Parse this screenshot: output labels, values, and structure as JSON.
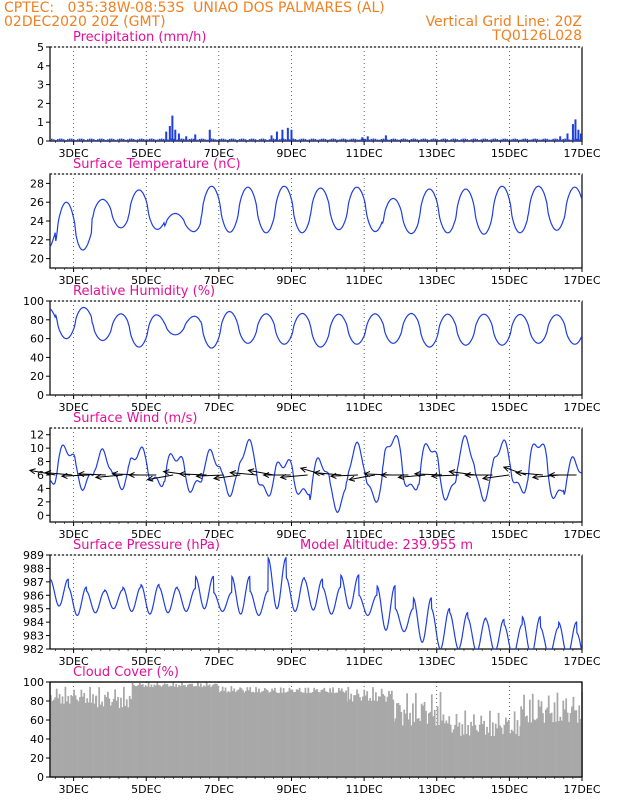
{
  "header": {
    "line1_left": "CPTEC:   035:38W-08:53S  UNIAO DOS PALMARES (AL)",
    "line2_left": "02DEC2020 20Z (GMT)",
    "line2_right": "Vertical Grid Line: 20Z",
    "line3_right": "TQ0126L028"
  },
  "colors": {
    "header": "#f08020",
    "title": "#e0109a",
    "series": "#1f3ee0",
    "cloud": "#a8a8a8",
    "wind_arrow": "#000000"
  },
  "x_axis": {
    "ticks": [
      "3DEC",
      "5DEC",
      "7DEC",
      "9DEC",
      "11DEC",
      "13DEC",
      "15DEC",
      "17DEC"
    ],
    "tick_days": [
      3,
      5,
      7,
      9,
      11,
      13,
      15,
      17
    ],
    "start_day": 2.35,
    "end_day": 17.0
  },
  "chart_data": [
    {
      "type": "bar",
      "title": "Precipitation (mm/h)",
      "ylim": [
        0,
        5
      ],
      "yticks": [
        0,
        1,
        2,
        3,
        4,
        5
      ],
      "events": [
        {
          "day": 5.55,
          "value": 0.5
        },
        {
          "day": 5.65,
          "value": 0.8
        },
        {
          "day": 5.72,
          "value": 1.35
        },
        {
          "day": 5.8,
          "value": 0.6
        },
        {
          "day": 5.9,
          "value": 0.4
        },
        {
          "day": 6.1,
          "value": 0.25
        },
        {
          "day": 6.35,
          "value": 0.35
        },
        {
          "day": 6.75,
          "value": 0.6
        },
        {
          "day": 8.45,
          "value": 0.3
        },
        {
          "day": 8.6,
          "value": 0.5
        },
        {
          "day": 8.75,
          "value": 0.6
        },
        {
          "day": 8.9,
          "value": 0.7
        },
        {
          "day": 9.0,
          "value": 0.6
        },
        {
          "day": 10.95,
          "value": 0.2
        },
        {
          "day": 11.1,
          "value": 0.25
        },
        {
          "day": 11.6,
          "value": 0.3
        },
        {
          "day": 16.4,
          "value": 0.25
        },
        {
          "day": 16.6,
          "value": 0.4
        },
        {
          "day": 16.75,
          "value": 0.9
        },
        {
          "day": 16.82,
          "value": 1.15
        },
        {
          "day": 16.9,
          "value": 0.6
        },
        {
          "day": 16.97,
          "value": 0.4
        }
      ]
    },
    {
      "type": "line",
      "title": "Surface Temperature (nC)",
      "ylim": [
        19,
        29
      ],
      "yticks": [
        20,
        22,
        24,
        26,
        28
      ],
      "daily_max": [
        26.0,
        26.3,
        27.3,
        24.8,
        27.7,
        27.6,
        27.7,
        27.5,
        27.6,
        26.4,
        27.4,
        27.4,
        27.7,
        27.7,
        27.6
      ],
      "daily_min": [
        20.0,
        23.3,
        23.2,
        22.9,
        22.8,
        22.8,
        22.6,
        23.1,
        23.0,
        22.6,
        22.8,
        22.6,
        22.6,
        23.1,
        22.8
      ]
    },
    {
      "type": "line",
      "title": "Relative Humidity (%)",
      "ylim": [
        0,
        100
      ],
      "yticks": [
        0,
        20,
        40,
        60,
        80,
        100
      ],
      "daily_max": [
        96,
        86,
        87,
        81,
        90,
        86,
        87,
        86,
        86,
        87,
        86,
        86,
        86,
        85,
        86
      ],
      "daily_min": [
        60,
        58,
        51,
        64,
        50,
        55,
        54,
        51,
        54,
        55,
        51,
        53,
        53,
        55,
        54
      ]
    },
    {
      "type": "line",
      "title": "Surface Wind (m/s)",
      "ylim": [
        -1,
        13
      ],
      "yticks": [
        0,
        2,
        4,
        6,
        8,
        10,
        12
      ],
      "daily_max": [
        10.0,
        9.0,
        9.5,
        9.0,
        9.0,
        10.5,
        8.0,
        8.0,
        10.0,
        11.5,
        10.5,
        11.0,
        10.5,
        11.0,
        8.0
      ],
      "daily_min": [
        4.5,
        4.5,
        5.0,
        4.0,
        4.0,
        3.0,
        4.0,
        1.0,
        2.0,
        4.0,
        3.0,
        2.5,
        4.0,
        3.0,
        2.0
      ],
      "arrow_length_days": 0.75,
      "arrow_angles_deg": [
        160,
        170,
        185,
        175,
        190,
        175,
        180,
        200,
        165,
        175,
        185,
        195,
        170,
        160,
        180,
        190,
        150,
        170,
        185,
        200,
        175,
        180,
        190,
        175,
        185,
        165,
        180,
        195,
        145,
        170,
        190,
        180
      ]
    },
    {
      "type": "line",
      "title": "Surface Pressure (hPa)",
      "subtitle": "Model Altitude: 239.955  m",
      "ylim": [
        982,
        989
      ],
      "yticks": [
        982,
        983,
        984,
        985,
        986,
        987,
        988,
        989
      ],
      "semidiurnal_peaks": [
        987.2,
        986.6,
        986.3,
        986.4,
        986.6,
        986.8,
        986.6,
        986.5,
        987.4,
        986.2,
        987.4,
        986.3,
        988.8,
        987.3,
        987.2,
        986.6,
        987.5,
        986.0,
        986.7,
        985.0,
        985.8,
        985.0,
        984.7,
        984.3,
        984.2,
        983.8,
        984.4,
        983.6,
        984.0,
        983.2
      ],
      "semidiurnal_troughs": [
        985.2,
        984.5,
        984.7,
        985.0,
        984.8,
        984.6,
        984.7,
        984.8,
        985.0,
        984.8,
        984.6,
        984.5,
        985.0,
        984.8,
        984.9,
        984.6,
        985.0,
        984.5,
        983.4,
        983.3,
        982.5,
        982.0,
        982.0,
        981.8,
        981.8,
        981.5,
        981.5,
        981.5,
        981.5,
        981.0
      ]
    },
    {
      "type": "area",
      "title": "Cloud Cover (%)",
      "ylim": [
        0,
        100
      ],
      "yticks": [
        0,
        20,
        40,
        60,
        80,
        100
      ],
      "segments": [
        {
          "from": 2.35,
          "to": 3.6,
          "low": 55,
          "high": 95
        },
        {
          "from": 3.6,
          "to": 4.6,
          "low": 45,
          "high": 95
        },
        {
          "from": 4.6,
          "to": 7.0,
          "low": 88,
          "high": 100
        },
        {
          "from": 7.0,
          "to": 8.0,
          "low": 80,
          "high": 96
        },
        {
          "from": 8.0,
          "to": 10.5,
          "low": 80,
          "high": 95
        },
        {
          "from": 10.5,
          "to": 11.8,
          "low": 60,
          "high": 95
        },
        {
          "from": 11.8,
          "to": 13.2,
          "low": 10,
          "high": 90
        },
        {
          "from": 13.2,
          "to": 15.3,
          "low": 10,
          "high": 70
        },
        {
          "from": 15.3,
          "to": 17.0,
          "low": 15,
          "high": 90
        }
      ]
    }
  ]
}
